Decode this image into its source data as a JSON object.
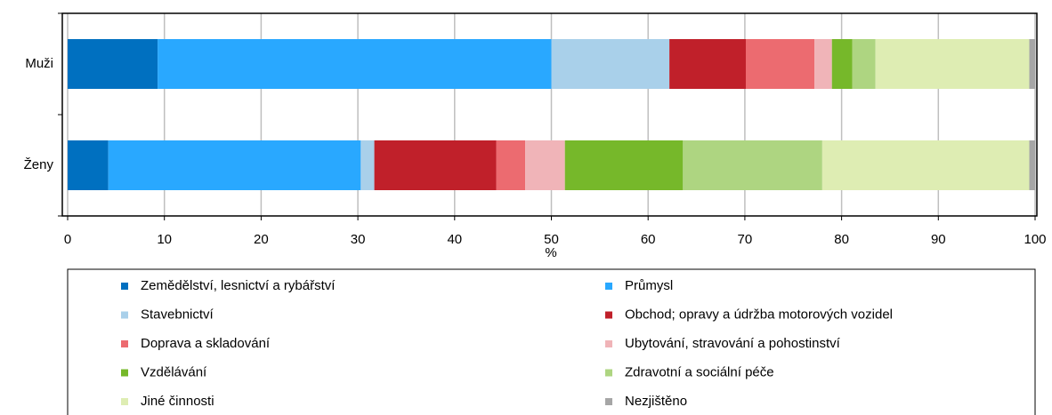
{
  "chart_data": {
    "type": "bar",
    "orientation": "horizontal",
    "stacked": true,
    "categories": [
      "Muži",
      "Ženy"
    ],
    "x_label": "%",
    "xlim": [
      0,
      100
    ],
    "xticks": [
      0,
      10,
      20,
      30,
      40,
      50,
      60,
      70,
      80,
      90,
      100
    ],
    "grid": true,
    "series": [
      {
        "name": "Zemědělství, lesnictví a rybářství",
        "color": "#0070c0",
        "values": [
          9.3,
          4.2
        ]
      },
      {
        "name": "Průmysl",
        "color": "#29a8ff",
        "values": [
          40.7,
          26.1
        ]
      },
      {
        "name": "Stavebnictví",
        "color": "#a9d0ea",
        "values": [
          12.2,
          1.4
        ]
      },
      {
        "name": "Obchod; opravy a údržba motorových vozidel",
        "color": "#c0202a",
        "values": [
          7.9,
          12.6
        ]
      },
      {
        "name": "Doprava a skladování",
        "color": "#ec6b70",
        "values": [
          7.1,
          3.0
        ]
      },
      {
        "name": "Ubytování, stravování a pohostinství",
        "color": "#f0b4b8",
        "values": [
          1.8,
          4.1
        ]
      },
      {
        "name": "Vzdělávání",
        "color": "#76b82a",
        "values": [
          2.1,
          12.2
        ]
      },
      {
        "name": "Zdravotní a sociální péče",
        "color": "#aed581",
        "values": [
          2.4,
          14.4
        ]
      },
      {
        "name": "Jiné činnosti",
        "color": "#deedb3",
        "values": [
          15.9,
          21.4
        ]
      },
      {
        "name": "Nezjištěno",
        "color": "#a6a6a6",
        "values": [
          0.6,
          0.6
        ]
      }
    ]
  }
}
